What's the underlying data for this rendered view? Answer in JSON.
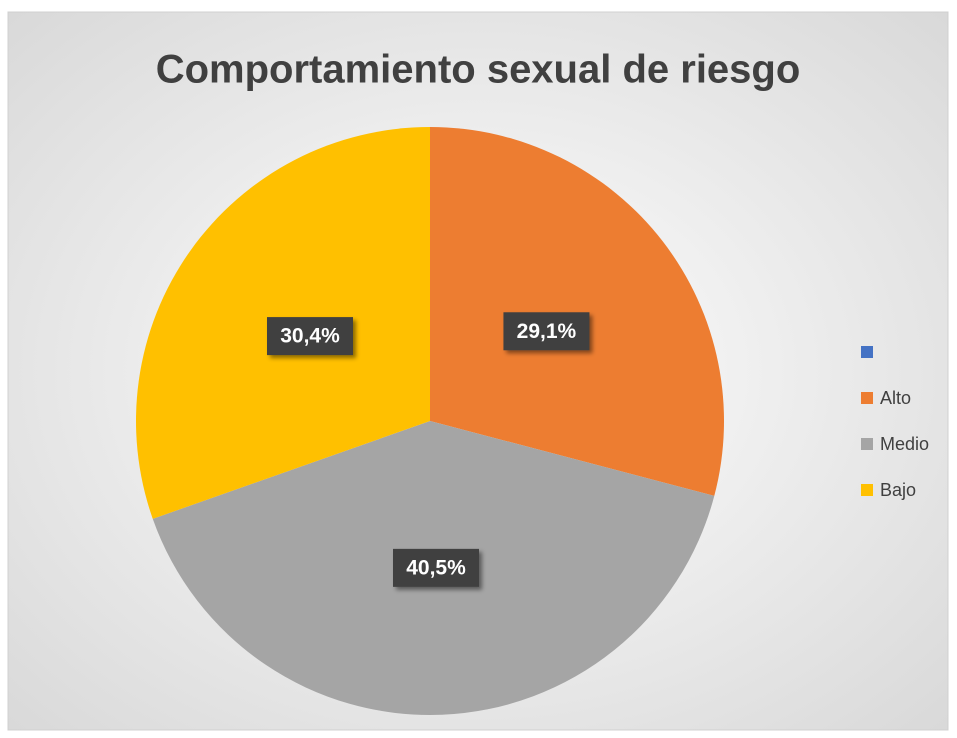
{
  "chart_data": {
    "type": "pie",
    "title": "Comportamiento sexual de riesgo",
    "categories": [
      null,
      "Alto",
      "Medio",
      "Bajo"
    ],
    "values": [
      0,
      29.1,
      40.5,
      30.4
    ],
    "value_labels": [
      null,
      "29,1%",
      "40,5%",
      "30,4%"
    ],
    "colors": [
      "#4472c4",
      "#ed7d31",
      "#a5a5a5",
      "#ffc000"
    ],
    "legend": "right"
  }
}
